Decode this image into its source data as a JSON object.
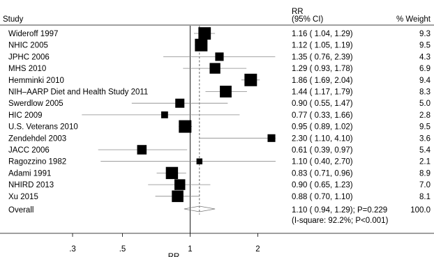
{
  "chart_data": {
    "type": "forest",
    "headers": {
      "study": "Study",
      "rr_line1": "RR",
      "rr_line2": "(95% CI)",
      "weight": "% Weight"
    },
    "xlabel": "RR",
    "x_scale": "log",
    "x_ticks": [
      {
        "value": 0.3,
        "label": ".3"
      },
      {
        "value": 0.5,
        "label": ".5"
      },
      {
        "value": 1,
        "label": "1"
      },
      {
        "value": 2,
        "label": "2"
      }
    ],
    "xlim": [
      0.3,
      2.4
    ],
    "null_line": 1,
    "overall_line": 1.1,
    "studies": [
      {
        "name": "Wideroff 1997",
        "rr": 1.16,
        "lo": 1.04,
        "hi": 1.29,
        "ci_text": "1.16 ( 1.04, 1.29)",
        "weight": "9.3"
      },
      {
        "name": "NHIC 2005",
        "rr": 1.12,
        "lo": 1.05,
        "hi": 1.19,
        "ci_text": "1.12 ( 1.05, 1.19)",
        "weight": "9.5"
      },
      {
        "name": "JPHC 2006",
        "rr": 1.35,
        "lo": 0.76,
        "hi": 2.39,
        "ci_text": "1.35 ( 0.76, 2.39)",
        "weight": "4.3"
      },
      {
        "name": "MHS 2010",
        "rr": 1.29,
        "lo": 0.93,
        "hi": 1.78,
        "ci_text": "1.29 ( 0.93, 1.78)",
        "weight": "6.9"
      },
      {
        "name": "Hemminki 2010",
        "rr": 1.86,
        "lo": 1.69,
        "hi": 2.04,
        "ci_text": "1.86 ( 1.69, 2.04)",
        "weight": "9.4"
      },
      {
        "name": "NIH–AARP Diet and Health Study 2011",
        "rr": 1.44,
        "lo": 1.17,
        "hi": 1.79,
        "ci_text": "1.44 ( 1.17, 1.79)",
        "weight": "8.3"
      },
      {
        "name": "Swerdlow 2005",
        "rr": 0.9,
        "lo": 0.55,
        "hi": 1.47,
        "ci_text": "0.90 ( 0.55, 1.47)",
        "weight": "5.0"
      },
      {
        "name": "HIC 2009",
        "rr": 0.77,
        "lo": 0.33,
        "hi": 1.66,
        "ci_text": "0.77 ( 0.33, 1.66)",
        "weight": "2.8"
      },
      {
        "name": "U.S. Veterans 2010",
        "rr": 0.95,
        "lo": 0.89,
        "hi": 1.02,
        "ci_text": "0.95 ( 0.89, 1.02)",
        "weight": "9.5"
      },
      {
        "name": "Zendehdel 2003",
        "rr": 2.3,
        "lo": 1.1,
        "hi": 4.1,
        "ci_text": "2.30 ( 1.10, 4.10)",
        "weight": "3.6"
      },
      {
        "name": "JACC 2006",
        "rr": 0.61,
        "lo": 0.39,
        "hi": 0.97,
        "ci_text": "0.61 ( 0.39, 0.97)",
        "weight": "5.4"
      },
      {
        "name": "Ragozzino 1982",
        "rr": 1.1,
        "lo": 0.4,
        "hi": 2.7,
        "ci_text": "1.10 ( 0.40, 2.70)",
        "weight": "2.1"
      },
      {
        "name": "Adami 1991",
        "rr": 0.83,
        "lo": 0.71,
        "hi": 0.96,
        "ci_text": "0.83 ( 0.71, 0.96)",
        "weight": "8.9"
      },
      {
        "name": "NHIRD 2013",
        "rr": 0.9,
        "lo": 0.65,
        "hi": 1.23,
        "ci_text": "0.90 ( 0.65, 1.23)",
        "weight": "7.0"
      },
      {
        "name": "Xu 2015",
        "rr": 0.88,
        "lo": 0.7,
        "hi": 1.1,
        "ci_text": "0.88 ( 0.70, 1.10)",
        "weight": "8.1"
      }
    ],
    "overall": {
      "name": "Overall",
      "rr": 1.1,
      "lo": 0.94,
      "hi": 1.29,
      "ci_text": "1.10 ( 0.94, 1.29); P=0.229",
      "heterogeneity": "(I-square: 92.2%; P<0.001)",
      "weight": "100.0"
    }
  }
}
